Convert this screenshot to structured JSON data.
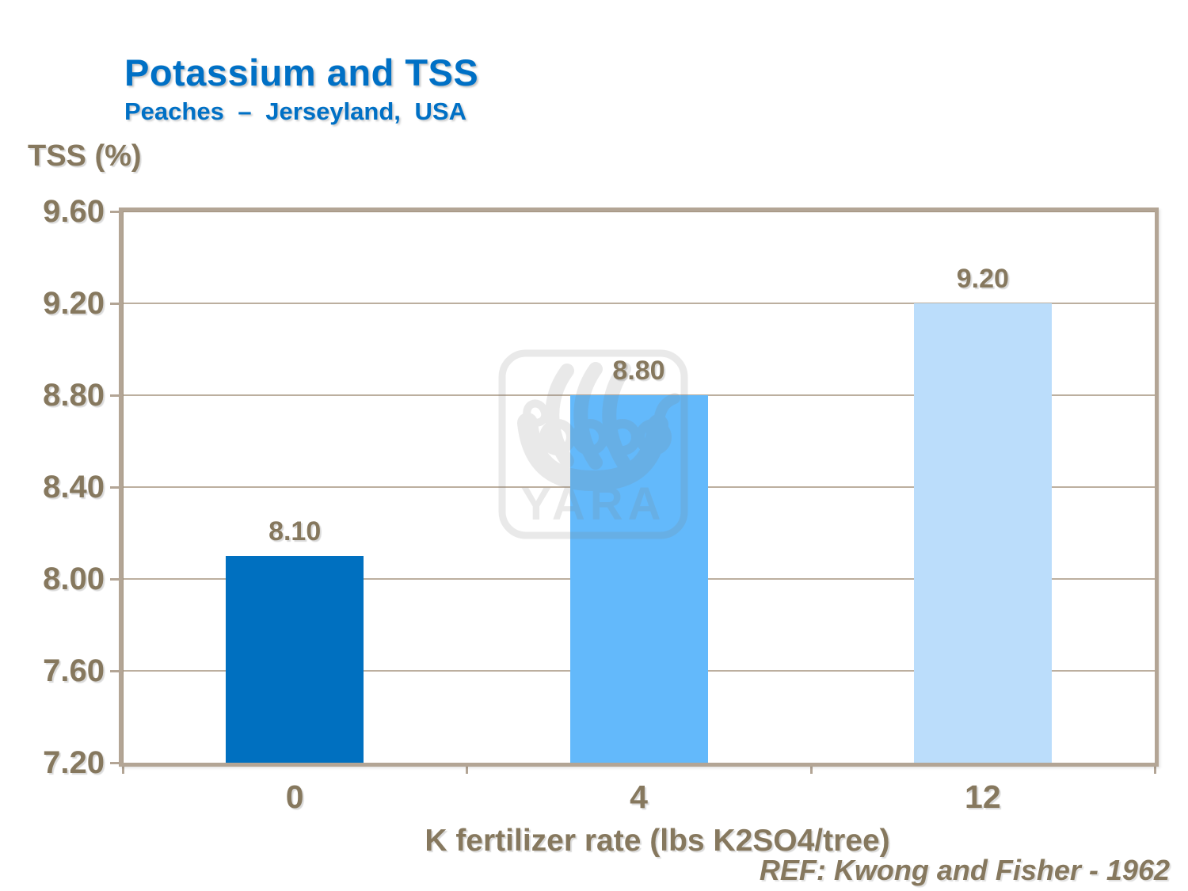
{
  "slide": {
    "title": "Potassium and TSS",
    "subtitle": "Peaches – Jerseyland, USA",
    "reference": "REF: Kwong and Fisher - 1962"
  },
  "watermark": {
    "label": "YARA"
  },
  "chart_data": {
    "type": "bar",
    "title": "Potassium and TSS",
    "subtitle": "Peaches – Jerseyland, USA",
    "categories": [
      "0",
      "4",
      "12"
    ],
    "values": [
      8.1,
      8.8,
      9.2
    ],
    "value_labels": [
      "8.10",
      "8.80",
      "9.20"
    ],
    "bar_colors": [
      "#0070C0",
      "#63B9FB",
      "#BBDDFB"
    ],
    "xlabel": "K fertilizer rate (lbs K2SO4/tree)",
    "ylabel": "TSS (%)",
    "ylim": [
      7.2,
      9.6
    ],
    "ytick_step": 0.4,
    "yticks": [
      "9.60",
      "9.20",
      "8.80",
      "8.40",
      "8.00",
      "7.60",
      "7.20"
    ],
    "grid": true,
    "legend": false
  },
  "colors": {
    "title_blue": "#0070C5",
    "text_brown": "#86785E",
    "axis_tan": "#B3A595",
    "gridline_tan": "#BCAF9F",
    "watermark_gray": "#808080"
  }
}
